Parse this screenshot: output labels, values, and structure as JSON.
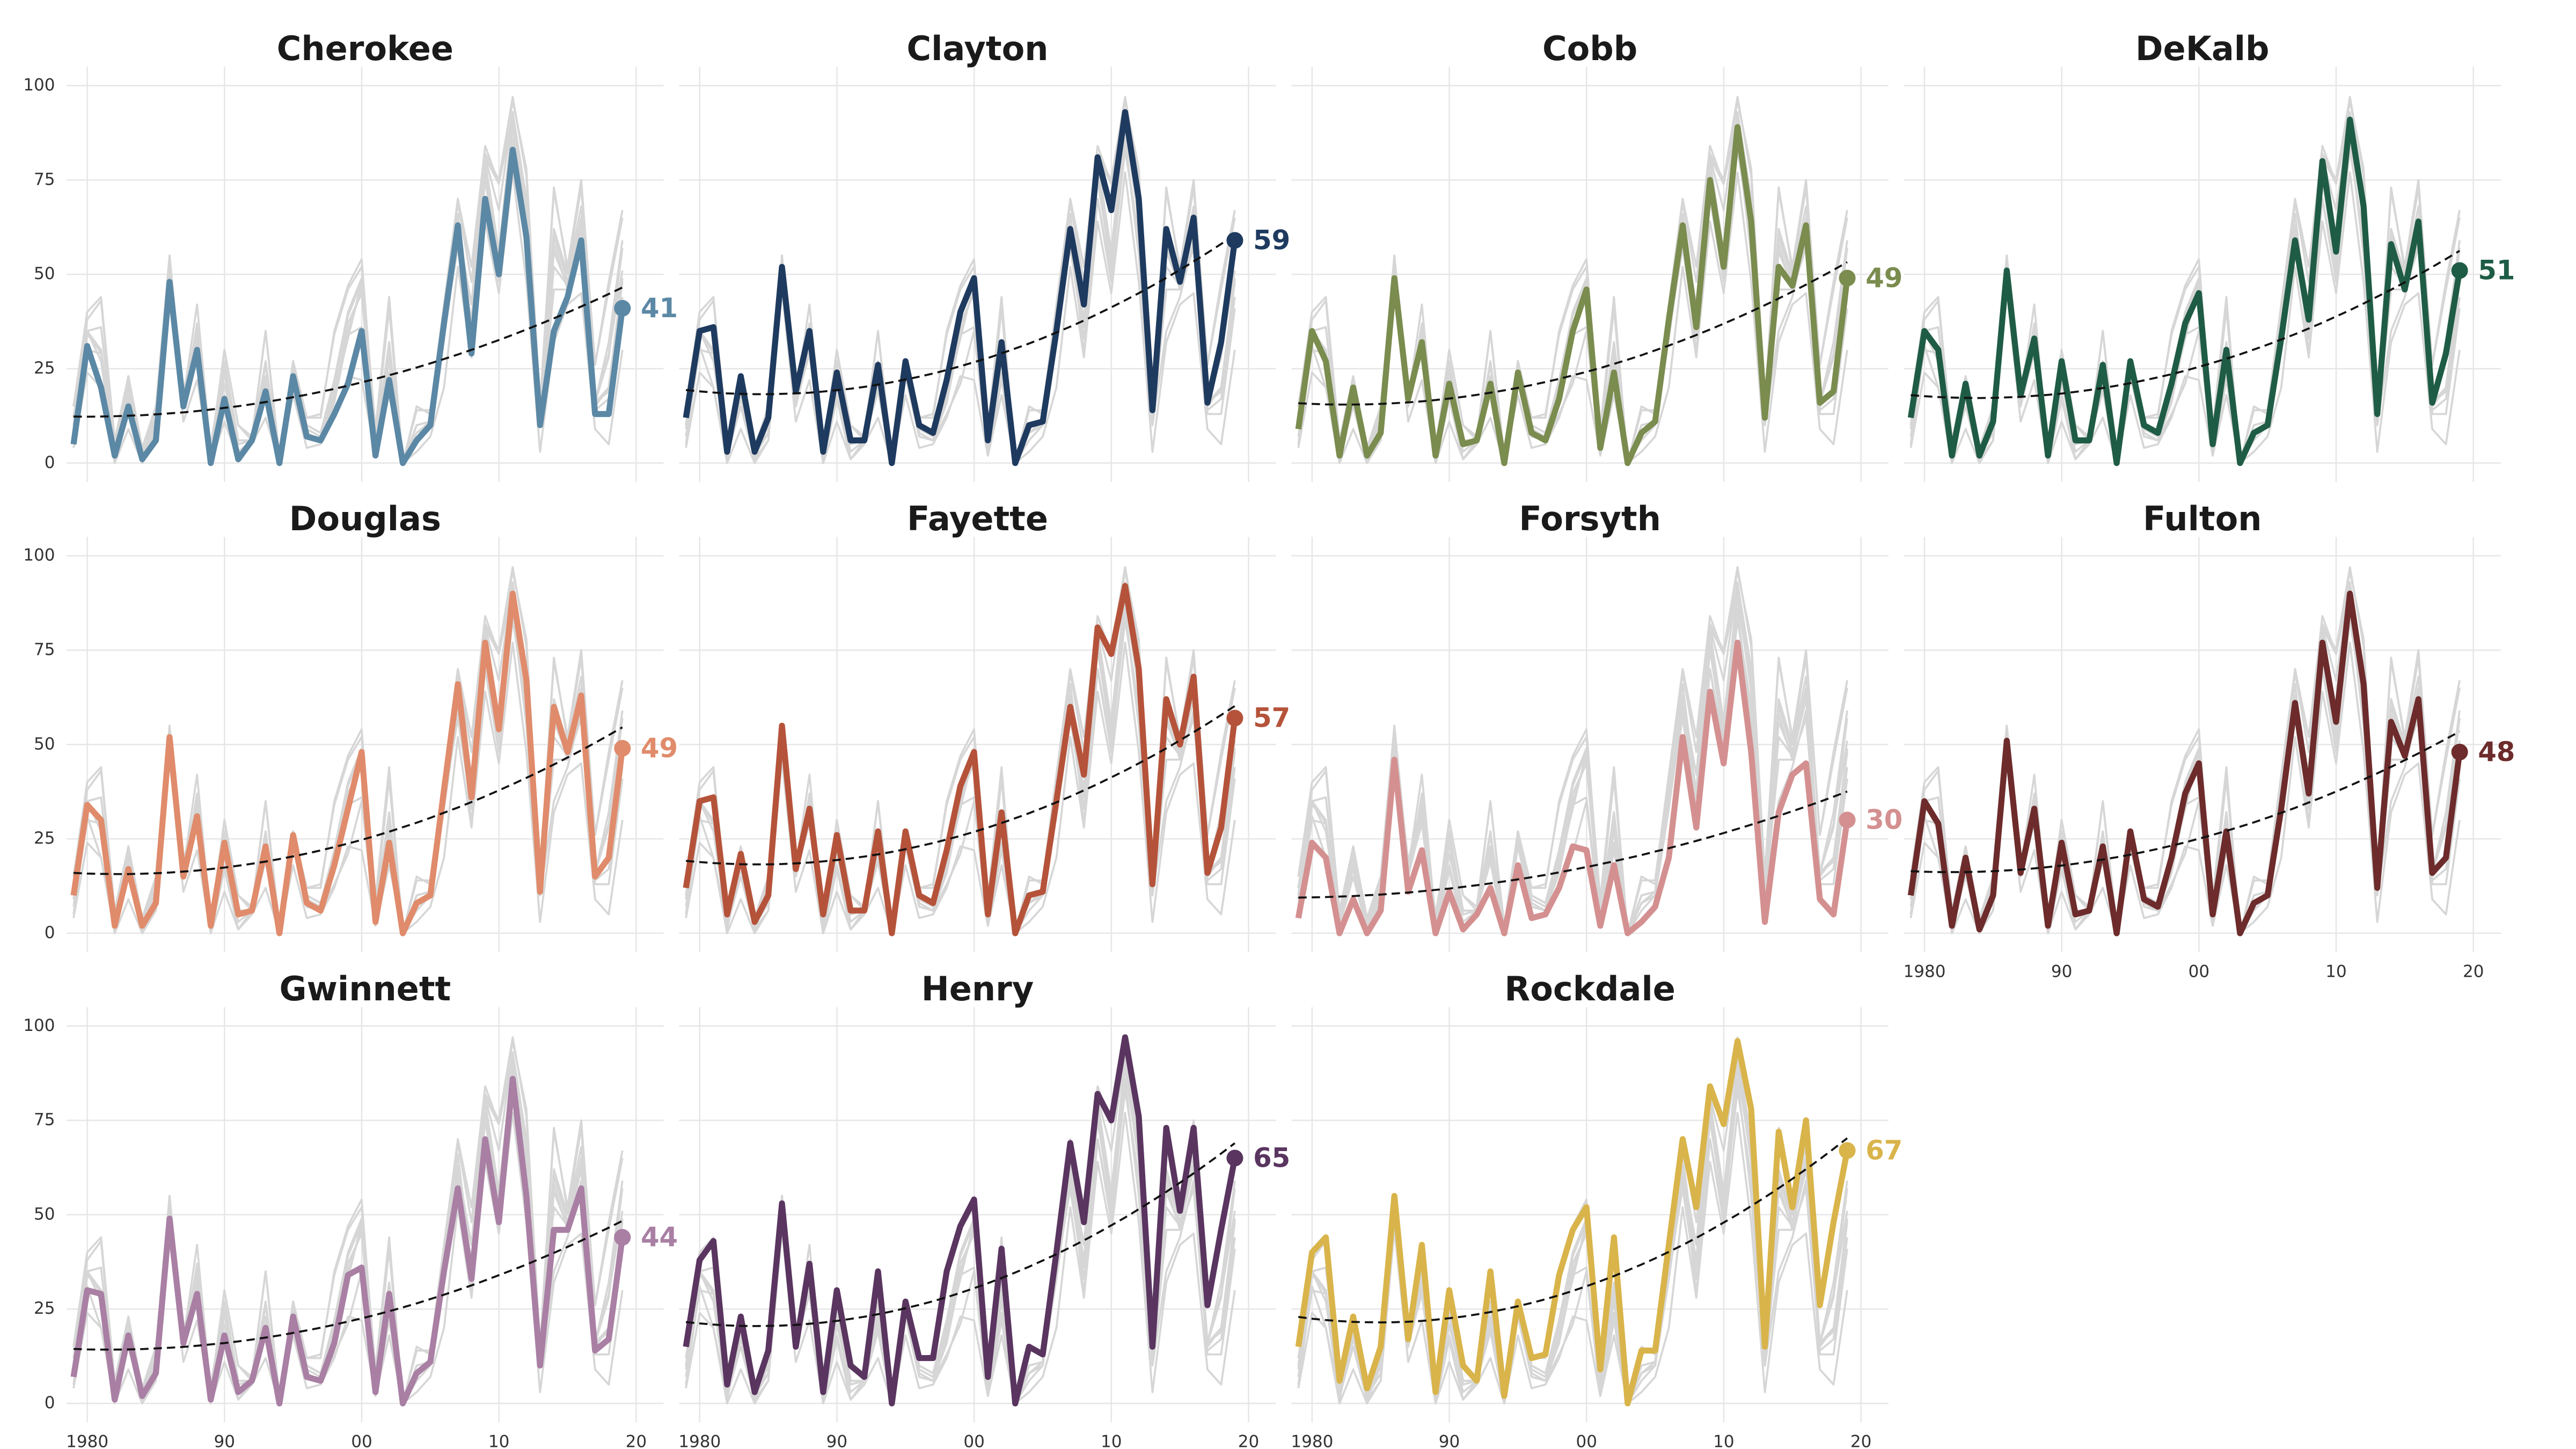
{
  "chart_data": {
    "type": "line",
    "x": [
      1979,
      1980,
      1981,
      1982,
      1983,
      1984,
      1985,
      1986,
      1987,
      1988,
      1989,
      1990,
      1991,
      1992,
      1993,
      1994,
      1995,
      1996,
      1997,
      1998,
      1999,
      2000,
      2001,
      2002,
      2003,
      2004,
      2005,
      2006,
      2007,
      2008,
      2009,
      2010,
      2011,
      2012,
      2013,
      2014,
      2015,
      2016,
      2017,
      2018,
      2019
    ],
    "xlim": [
      1978.5,
      2022
    ],
    "xticks": [
      1980,
      {
        "value": 1990,
        "label": "90"
      },
      {
        "value": 2000,
        "label": "00"
      },
      {
        "value": 2010,
        "label": "10"
      },
      {
        "value": 2020,
        "label": "20"
      }
    ],
    "ylim": [
      -5,
      105
    ],
    "yticks": [
      0,
      25,
      50,
      75,
      100
    ],
    "grid": true,
    "series": [
      {
        "name": "Cherokee",
        "color": "#5b88a5",
        "values": [
          5,
          31,
          20,
          2,
          15,
          1,
          6,
          48,
          15,
          30,
          0,
          17,
          1,
          6,
          19,
          0,
          23,
          7,
          6,
          13,
          21,
          35,
          2,
          22,
          0,
          6,
          10,
          37,
          63,
          29,
          70,
          50,
          83,
          60,
          10,
          35,
          44,
          59,
          13,
          13,
          41
        ]
      },
      {
        "name": "Clayton",
        "color": "#1e3a5f",
        "values": [
          12,
          35,
          36,
          3,
          23,
          3,
          12,
          52,
          19,
          35,
          3,
          24,
          6,
          6,
          26,
          0,
          27,
          10,
          8,
          22,
          40,
          49,
          6,
          32,
          0,
          10,
          11,
          35,
          62,
          42,
          81,
          67,
          93,
          70,
          14,
          62,
          48,
          65,
          16,
          32,
          59
        ]
      },
      {
        "name": "Cobb",
        "color": "#7a8c4e",
        "values": [
          9,
          35,
          27,
          2,
          20,
          2,
          8,
          49,
          17,
          32,
          2,
          21,
          5,
          6,
          21,
          0,
          24,
          8,
          6,
          17,
          35,
          46,
          4,
          24,
          0,
          8,
          11,
          38,
          63,
          36,
          75,
          52,
          89,
          64,
          12,
          52,
          47,
          63,
          16,
          19,
          49
        ]
      },
      {
        "name": "DeKalb",
        "color": "#1f5c45",
        "values": [
          12,
          35,
          30,
          2,
          21,
          2,
          11,
          51,
          18,
          33,
          2,
          27,
          6,
          6,
          26,
          0,
          27,
          10,
          8,
          21,
          37,
          45,
          5,
          30,
          0,
          8,
          10,
          33,
          59,
          38,
          80,
          56,
          91,
          68,
          13,
          58,
          46,
          64,
          16,
          29,
          51
        ]
      },
      {
        "name": "Douglas",
        "color": "#e08b6b",
        "values": [
          10,
          34,
          30,
          2,
          17,
          2,
          8,
          52,
          15,
          31,
          2,
          24,
          5,
          6,
          23,
          0,
          26,
          8,
          6,
          18,
          33,
          48,
          3,
          24,
          0,
          8,
          10,
          38,
          66,
          36,
          77,
          54,
          90,
          67,
          11,
          60,
          48,
          63,
          15,
          20,
          49
        ]
      },
      {
        "name": "Fayette",
        "color": "#b5533a",
        "values": [
          12,
          35,
          36,
          5,
          21,
          3,
          10,
          55,
          17,
          33,
          5,
          26,
          6,
          6,
          27,
          0,
          27,
          10,
          8,
          22,
          39,
          48,
          5,
          32,
          0,
          10,
          11,
          35,
          60,
          42,
          81,
          74,
          92,
          70,
          13,
          62,
          50,
          68,
          16,
          28,
          57
        ]
      },
      {
        "name": "Forsyth",
        "color": "#d49090",
        "values": [
          4,
          24,
          20,
          0,
          9,
          0,
          6,
          46,
          11,
          22,
          0,
          11,
          1,
          5,
          12,
          0,
          18,
          4,
          5,
          12,
          23,
          22,
          2,
          18,
          0,
          3,
          7,
          20,
          52,
          28,
          64,
          45,
          77,
          48,
          3,
          32,
          42,
          45,
          9,
          5,
          30
        ]
      },
      {
        "name": "Fulton",
        "color": "#6d2b2b",
        "values": [
          10,
          35,
          29,
          2,
          20,
          1,
          10,
          51,
          16,
          33,
          2,
          24,
          5,
          6,
          23,
          0,
          27,
          9,
          7,
          20,
          37,
          45,
          5,
          27,
          0,
          8,
          10,
          33,
          61,
          37,
          77,
          56,
          90,
          66,
          12,
          56,
          47,
          62,
          16,
          20,
          48
        ]
      },
      {
        "name": "Gwinnett",
        "color": "#a97fa4",
        "values": [
          7,
          30,
          29,
          1,
          18,
          2,
          8,
          49,
          16,
          29,
          1,
          18,
          3,
          6,
          20,
          0,
          23,
          7,
          6,
          16,
          34,
          36,
          3,
          29,
          0,
          8,
          11,
          35,
          57,
          33,
          70,
          48,
          86,
          55,
          10,
          46,
          46,
          57,
          14,
          17,
          44
        ]
      },
      {
        "name": "Henry",
        "color": "#5a3560",
        "values": [
          15,
          38,
          43,
          5,
          23,
          3,
          14,
          53,
          15,
          37,
          3,
          30,
          10,
          7,
          35,
          0,
          27,
          12,
          12,
          35,
          47,
          54,
          7,
          41,
          0,
          15,
          13,
          40,
          69,
          48,
          82,
          75,
          97,
          76,
          15,
          73,
          51,
          73,
          26,
          46,
          65
        ]
      },
      {
        "name": "Rockdale",
        "color": "#d9b44a",
        "values": [
          15,
          40,
          44,
          6,
          23,
          4,
          15,
          55,
          17,
          42,
          3,
          30,
          10,
          6,
          35,
          2,
          27,
          12,
          13,
          34,
          46,
          52,
          9,
          44,
          0,
          14,
          14,
          42,
          70,
          52,
          84,
          74,
          96,
          78,
          15,
          72,
          52,
          75,
          26,
          48,
          67
        ]
      }
    ]
  }
}
